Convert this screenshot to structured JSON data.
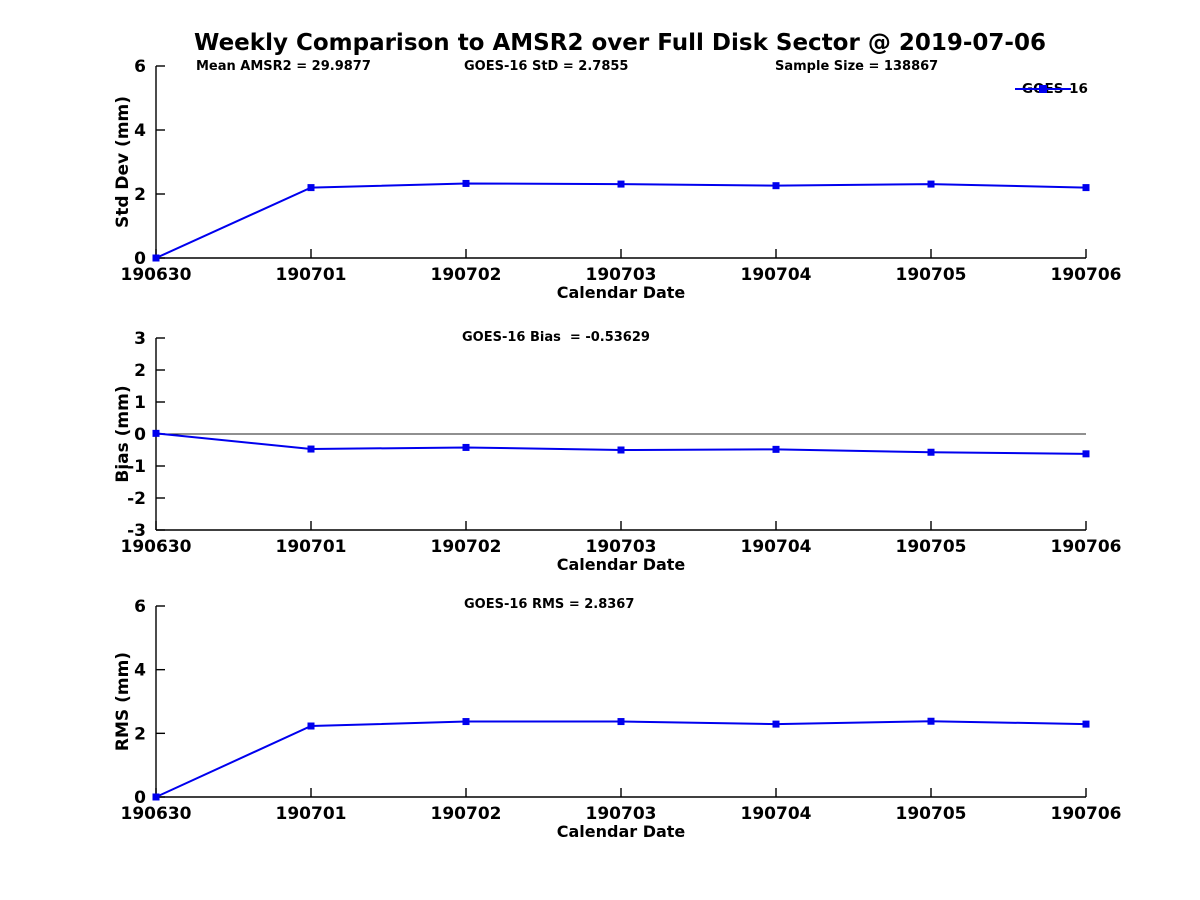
{
  "title": "Weekly Comparison to AMSR2 over Full Disk Sector @ 2019-07-06",
  "header_stats": {
    "mean_amsr2": "Mean AMSR2 = 29.9877",
    "goes16_std": "GOES-16 StD = 2.7855",
    "sample_size": "Sample Size = 138867"
  },
  "legend": {
    "label": "GOES-16"
  },
  "colors": {
    "line": "#0000ee",
    "marker": "#0000ee",
    "axis": "#000000",
    "zero_line": "#222222",
    "text": "#000000",
    "background": "#ffffff"
  },
  "chart_data": [
    {
      "type": "line",
      "panel": "std-dev",
      "categories": [
        "190630",
        "190701",
        "190702",
        "190703",
        "190704",
        "190705",
        "190706"
      ],
      "series": [
        {
          "name": "GOES-16",
          "values": [
            0.0,
            2.2,
            2.33,
            2.31,
            2.26,
            2.31,
            2.2
          ]
        }
      ],
      "xlabel": "Calendar Date",
      "ylabel": "Std Dev (mm)",
      "ylim": [
        0,
        6
      ],
      "yticks": [
        0,
        2,
        4,
        6
      ],
      "grid": false,
      "zero_line": false,
      "annotation": "",
      "legend_position": "top-right"
    },
    {
      "type": "line",
      "panel": "bias",
      "categories": [
        "190630",
        "190701",
        "190702",
        "190703",
        "190704",
        "190705",
        "190706"
      ],
      "series": [
        {
          "name": "GOES-16",
          "values": [
            0.02,
            -0.47,
            -0.42,
            -0.5,
            -0.48,
            -0.57,
            -0.62
          ]
        }
      ],
      "xlabel": "Calendar Date",
      "ylabel": "Bias (mm)",
      "ylim": [
        -3,
        3
      ],
      "yticks": [
        -3,
        -2,
        -1,
        0,
        1,
        2,
        3
      ],
      "grid": false,
      "zero_line": true,
      "annotation": "GOES-16 Bias  = -0.53629",
      "legend_position": "none"
    },
    {
      "type": "line",
      "panel": "rms",
      "categories": [
        "190630",
        "190701",
        "190702",
        "190703",
        "190704",
        "190705",
        "190706"
      ],
      "series": [
        {
          "name": "GOES-16",
          "values": [
            0.0,
            2.23,
            2.37,
            2.37,
            2.29,
            2.38,
            2.29
          ]
        }
      ],
      "xlabel": "Calendar Date",
      "ylabel": "RMS (mm)",
      "ylim": [
        0,
        6
      ],
      "yticks": [
        0,
        2,
        4,
        6
      ],
      "grid": false,
      "zero_line": false,
      "annotation": "GOES-16 RMS = 2.8367",
      "legend_position": "none"
    }
  ]
}
